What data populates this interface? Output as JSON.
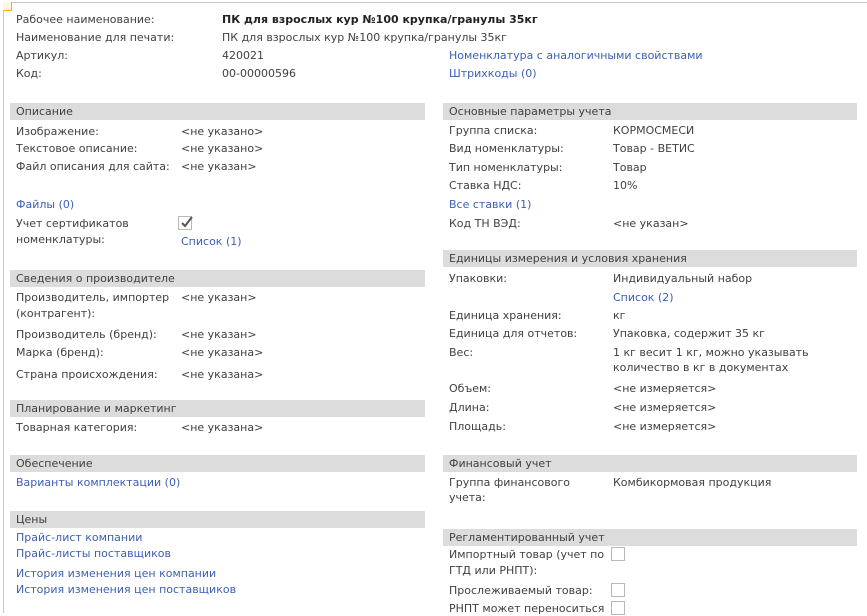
{
  "header": {
    "working_name_label": "Рабочее наименование:",
    "working_name_value": "ПК для взрослых кур №100 крупка/гранулы 35кг",
    "print_name_label": "Наименование для печати:",
    "print_name_value": "ПК для взрослых кур №100 крупка/гранулы 35кг",
    "article_label": "Артикул:",
    "article_value": "420021",
    "code_label": "Код:",
    "code_value": "00-00000596",
    "similar_link": "Номенклатура с аналогичными свойствами",
    "barcodes_link": "Штрихкоды (0)"
  },
  "description": {
    "title": "Описание",
    "image_label": "Изображение:",
    "image_value": "<не указано>",
    "text_label": "Текстовое описание:",
    "text_value": "<не указано>",
    "site_file_label": "Файл описания для сайта:",
    "site_file_value": "<не указан>",
    "files_link": "Файлы (0)",
    "certs_label_1": "Учет сертификатов",
    "certs_label_2": "номенклатуры:",
    "certs_checked": true,
    "certs_list_link": "Список (1)"
  },
  "manufacturer": {
    "title": "Сведения о производителе",
    "importer_label_1": "Производитель, импортер",
    "importer_label_2": "(контрагент):",
    "importer_value": "<не указан>",
    "brand_label": "Производитель (бренд):",
    "brand_value": "<не указан>",
    "mark_label": "Марка (бренд):",
    "mark_value": "<не указана>",
    "country_label": "Страна происхождения:",
    "country_value": "<не указана>"
  },
  "planning": {
    "title": "Планирование и маркетинг",
    "category_label": "Товарная категория:",
    "category_value": "<не указана>"
  },
  "supply": {
    "title": "Обеспечение",
    "variants_link": "Варианты комплектации (0)"
  },
  "prices": {
    "title": "Цены",
    "links": [
      "Прайс-лист компании",
      "Прайс-листы поставщиков",
      "История изменения цен компании",
      "История изменения цен поставщиков"
    ]
  },
  "main_params": {
    "title": "Основные параметры учета",
    "group_label": "Группа списка:",
    "group_value": "КОРМОСМЕСИ",
    "kind_label": "Вид номенклатуры:",
    "kind_value": "Товар - ВЕТИС",
    "type_label": "Тип номенклатуры:",
    "type_value": "Товар",
    "vat_label": "Ставка НДС:",
    "vat_value": "10%",
    "all_rates_link": "Все ставки (1)",
    "tnved_label": "Код ТН ВЭД:",
    "tnved_value": "<не указан>"
  },
  "units": {
    "title": "Единицы измерения и условия хранения",
    "packs_label": "Упаковки:",
    "packs_value": "Индивидуальный набор",
    "packs_list_link": "Список (2)",
    "storage_unit_label": "Единица хранения:",
    "storage_unit_value": "кг",
    "report_unit_label": "Единица для отчетов:",
    "report_unit_value": "Упаковка, содержит 35 кг",
    "weight_label": "Вес:",
    "weight_value_1": "1 кг весит 1 кг, можно указывать",
    "weight_value_2": "количество в кг в документах",
    "volume_label": "Объем:",
    "volume_value": "<не измеряется>",
    "length_label": "Длина:",
    "length_value": "<не измеряется>",
    "area_label": "Площадь:",
    "area_value": "<не измеряется>"
  },
  "finance": {
    "title": "Финансовый учет",
    "group_label_1": "Группа финансового",
    "group_label_2": "учета:",
    "group_value": "Комбикормовая продукция"
  },
  "regulated": {
    "title": "Регламентированный учет",
    "import_label_1": "Импортный товар (учет по",
    "import_label_2": "ГТД или РНПТ):",
    "import_checked": false,
    "traceable_label": "Прослеживаемый товар:",
    "traceable_checked": false,
    "rnpt_label": "РНПТ может переноситься",
    "rnpt_checked": false
  }
}
